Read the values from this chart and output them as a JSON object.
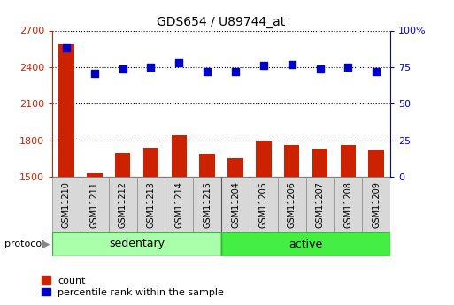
{
  "title": "GDS654 / U89744_at",
  "samples": [
    "GSM11210",
    "GSM11211",
    "GSM11212",
    "GSM11213",
    "GSM11214",
    "GSM11215",
    "GSM11204",
    "GSM11205",
    "GSM11206",
    "GSM11207",
    "GSM11208",
    "GSM11209"
  ],
  "counts": [
    2590,
    1530,
    1700,
    1740,
    1840,
    1690,
    1650,
    1800,
    1760,
    1730,
    1760,
    1720
  ],
  "percentile_ranks": [
    88,
    71,
    74,
    75,
    78,
    72,
    72,
    76,
    77,
    74,
    75,
    72
  ],
  "bar_color": "#cc2200",
  "dot_color": "#0000cc",
  "ylim_left": [
    1500,
    2700
  ],
  "ylim_right": [
    0,
    100
  ],
  "yticks_left": [
    1500,
    1800,
    2100,
    2400,
    2700
  ],
  "yticks_right": [
    0,
    25,
    50,
    75,
    100
  ],
  "ytick_labels_right": [
    "0",
    "25",
    "50",
    "75",
    "100%"
  ],
  "groups": [
    {
      "label": "sedentary",
      "indices": [
        0,
        1,
        2,
        3,
        4,
        5
      ],
      "color": "#aaffaa"
    },
    {
      "label": "active",
      "indices": [
        6,
        7,
        8,
        9,
        10,
        11
      ],
      "color": "#44ee44"
    }
  ],
  "protocol_label": "protocol",
  "legend_count_label": "count",
  "legend_pct_label": "percentile rank within the sample",
  "grid_color": "black",
  "bar_width": 0.55,
  "dot_size": 40,
  "sedentary_divider": 5.5
}
